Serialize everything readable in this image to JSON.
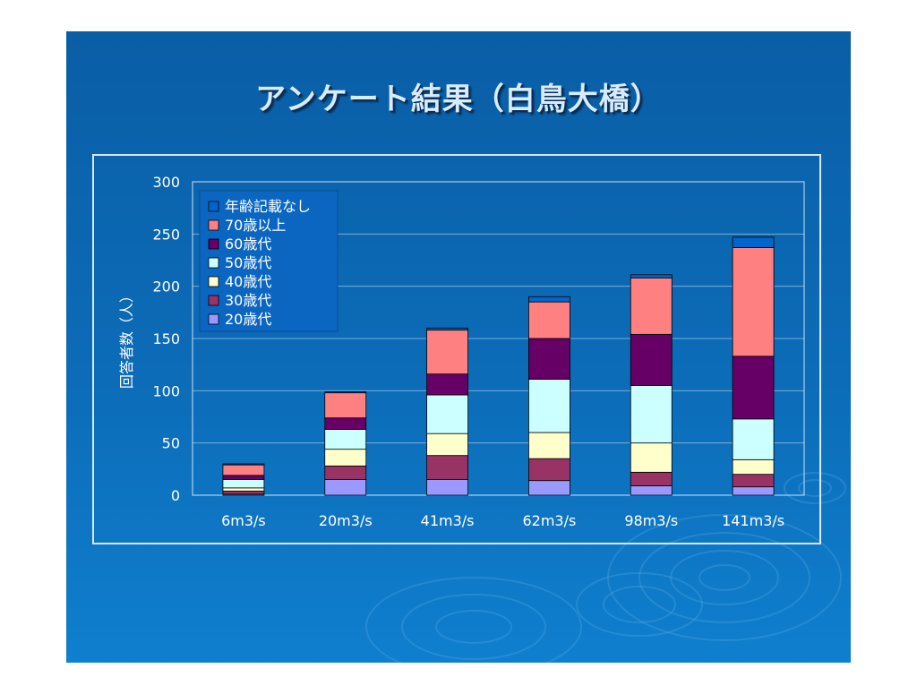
{
  "slide": {
    "title": "アンケート結果（白鳥大橋）"
  },
  "chart_data": {
    "type": "bar",
    "stacked": true,
    "categories": [
      "6m3/s",
      "20m3/s",
      "41m3/s",
      "62m3/s",
      "98m3/s",
      "141m3/s"
    ],
    "ylabel": "回答者数（人）",
    "xlabel": "",
    "ylim": [
      0,
      300
    ],
    "yticks": [
      "0",
      "50",
      "100",
      "150",
      "200",
      "250",
      "300"
    ],
    "grid": true,
    "legend_position": "top-left",
    "series": [
      {
        "name": "20歳代",
        "color": "#9999ff",
        "values": [
          1,
          15,
          15,
          14,
          9,
          8
        ]
      },
      {
        "name": "30歳代",
        "color": "#993366",
        "values": [
          3,
          13,
          23,
          21,
          13,
          12
        ]
      },
      {
        "name": "40歳代",
        "color": "#ffffcc",
        "values": [
          3,
          16,
          21,
          25,
          28,
          14
        ]
      },
      {
        "name": "50歳代",
        "color": "#ccffff",
        "values": [
          8,
          19,
          37,
          51,
          55,
          39
        ]
      },
      {
        "name": "60歳代",
        "color": "#660066",
        "values": [
          4,
          11,
          20,
          39,
          49,
          60
        ]
      },
      {
        "name": "70歳以上",
        "color": "#ff8080",
        "values": [
          10,
          24,
          42,
          35,
          54,
          104
        ]
      },
      {
        "name": "年齢記載なし",
        "color": "#0066cc",
        "values": [
          1,
          1,
          2,
          5,
          3,
          10
        ]
      }
    ]
  }
}
